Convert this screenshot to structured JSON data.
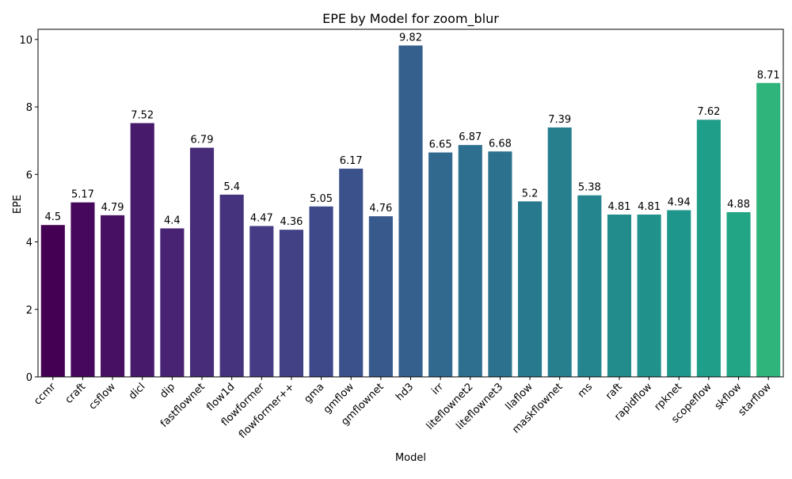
{
  "chart_data": {
    "type": "bar",
    "title": "EPE by Model for zoom_blur",
    "xlabel": "Model",
    "ylabel": "EPE",
    "ylim": [
      0,
      10.3
    ],
    "yticks": [
      0,
      2,
      4,
      6,
      8,
      10
    ],
    "grid": false,
    "categories": [
      "ccmr",
      "craft",
      "csflow",
      "dicl",
      "dip",
      "fastflownet",
      "flow1d",
      "flowformer",
      "flowformer++",
      "gma",
      "gmflow",
      "gmflownet",
      "hd3",
      "irr",
      "liteflownet2",
      "liteflownet3",
      "llaflow",
      "maskflownet",
      "ms",
      "raft",
      "rapidflow",
      "rpknet",
      "scopeflow",
      "skflow",
      "starflow"
    ],
    "values": [
      4.5,
      5.17,
      4.79,
      7.52,
      4.4,
      6.79,
      5.4,
      4.47,
      4.36,
      5.05,
      6.17,
      4.76,
      9.82,
      6.65,
      6.87,
      6.68,
      5.2,
      7.39,
      5.38,
      4.81,
      4.81,
      4.94,
      7.62,
      4.88,
      8.71
    ],
    "data_labels": [
      "4.5",
      "5.17",
      "4.79",
      "7.52",
      "4.4",
      "6.79",
      "5.4",
      "4.47",
      "4.36",
      "5.05",
      "6.17",
      "4.76",
      "9.82",
      "6.65",
      "6.87",
      "6.68",
      "5.2",
      "7.39",
      "5.38",
      "4.81",
      "4.81",
      "4.94",
      "7.62",
      "4.88",
      "8.71"
    ],
    "colormap": "viridis",
    "colors": [
      "#440154",
      "#46085c",
      "#471063",
      "#481a6c",
      "#482374",
      "#472c7a",
      "#46337e",
      "#443b84",
      "#424186",
      "#3e4989",
      "#3b518b",
      "#38598c",
      "#35608d",
      "#31688e",
      "#2e6e8e",
      "#2c728e",
      "#29798e",
      "#277f8e",
      "#25858e",
      "#228c8d",
      "#21918c",
      "#1f968b",
      "#1f9e89",
      "#21a585",
      "#2fb47c"
    ]
  }
}
